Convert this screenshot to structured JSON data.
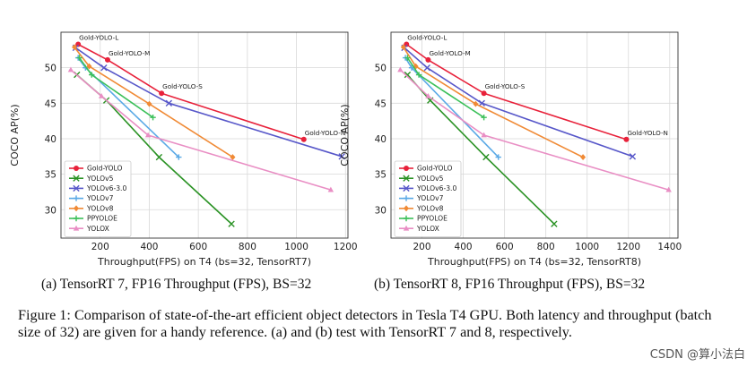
{
  "chart_data": [
    {
      "type": "line",
      "xlabel": "Throughput(FPS) on T4 (bs=32, TensorRT7)",
      "ylabel": "COCO AP(%)",
      "xlim": [
        40,
        1210
      ],
      "ylim": [
        26,
        55
      ],
      "xticks": [
        200,
        400,
        600,
        800,
        1000,
        1200
      ],
      "yticks": [
        30,
        35,
        40,
        45,
        50
      ],
      "grid": true,
      "legend": "lower-left",
      "series": [
        {
          "name": "Gold-YOLO",
          "color": "#e8213a",
          "marker": "circle",
          "x": [
            110,
            230,
            450,
            1030
          ],
          "y": [
            53.3,
            51.1,
            46.4,
            39.9
          ],
          "labels": [
            "Gold-YOLO-L",
            "Gold-YOLO-M",
            "Gold-YOLO-S",
            "Gold-YOLO-N"
          ]
        },
        {
          "name": "YOLOv5",
          "color": "#2a9224",
          "marker": "x",
          "x": [
            105,
            225,
            440,
            735
          ],
          "y": [
            49.0,
            45.4,
            37.4,
            28.0
          ]
        },
        {
          "name": "YOLOv6-3.0",
          "color": "#5757c9",
          "marker": "x",
          "x": [
            100,
            215,
            480,
            1185
          ],
          "y": [
            52.8,
            50.0,
            45.0,
            37.5
          ]
        },
        {
          "name": "YOLOv7",
          "color": "#5aa9e6",
          "marker": "plus",
          "x": [
            110,
            140,
            520
          ],
          "y": [
            51.4,
            50.0,
            37.4
          ]
        },
        {
          "name": "YOLOv8",
          "color": "#f08a35",
          "marker": "diamond",
          "x": [
            95,
            155,
            400,
            740
          ],
          "y": [
            52.9,
            50.2,
            44.9,
            37.4
          ]
        },
        {
          "name": "PPYOLOE",
          "color": "#3cc05a",
          "marker": "plus",
          "x": [
            115,
            165,
            415
          ],
          "y": [
            51.4,
            49.0,
            43.0
          ]
        },
        {
          "name": "YOLOX",
          "color": "#e98ec4",
          "marker": "triangle",
          "x": [
            80,
            205,
            395,
            1140
          ],
          "y": [
            49.7,
            46.0,
            40.5,
            32.8
          ]
        }
      ]
    },
    {
      "type": "line",
      "xlabel": "Throughput(FPS) on T4 (bs=32, TensorRT8)",
      "ylabel": "COCO AP(%)",
      "xlim": [
        50,
        1440
      ],
      "ylim": [
        26,
        55
      ],
      "xticks": [
        200,
        400,
        600,
        800,
        1000,
        1200,
        1400
      ],
      "yticks": [
        30,
        35,
        40,
        45,
        50
      ],
      "grid": true,
      "legend": "lower-left",
      "series": [
        {
          "name": "Gold-YOLO",
          "color": "#e8213a",
          "marker": "circle",
          "x": [
            125,
            230,
            500,
            1190
          ],
          "y": [
            53.3,
            51.1,
            46.4,
            39.9
          ],
          "labels": [
            "Gold-YOLO-L",
            "Gold-YOLO-M",
            "Gold-YOLO-S",
            "Gold-YOLO-N"
          ]
        },
        {
          "name": "YOLOv5",
          "color": "#2a9224",
          "marker": "x",
          "x": [
            130,
            240,
            510,
            840
          ],
          "y": [
            49.0,
            45.4,
            37.4,
            28.0
          ]
        },
        {
          "name": "YOLOv6-3.0",
          "color": "#5757c9",
          "marker": "x",
          "x": [
            115,
            225,
            490,
            1220
          ],
          "y": [
            52.8,
            50.0,
            45.0,
            37.5
          ]
        },
        {
          "name": "YOLOv7",
          "color": "#5aa9e6",
          "marker": "plus",
          "x": [
            120,
            150,
            570
          ],
          "y": [
            51.4,
            50.0,
            37.4
          ]
        },
        {
          "name": "YOLOv8",
          "color": "#f08a35",
          "marker": "diamond",
          "x": [
            110,
            170,
            460,
            980
          ],
          "y": [
            52.9,
            50.2,
            44.9,
            37.4
          ]
        },
        {
          "name": "PPYOLOE",
          "color": "#3cc05a",
          "marker": "plus",
          "x": [
            130,
            185,
            500
          ],
          "y": [
            51.4,
            49.0,
            43.0
          ]
        },
        {
          "name": "YOLOX",
          "color": "#e98ec4",
          "marker": "triangle",
          "x": [
            95,
            230,
            500,
            1395
          ],
          "y": [
            49.7,
            46.0,
            40.5,
            32.8
          ]
        }
      ]
    }
  ],
  "captions": {
    "sub_a": "(a) TensorRT 7, FP16 Throughput (FPS), BS=32",
    "sub_b": "(b) TensorRT 8, FP16 Throughput (FPS), BS=32",
    "figure": "Figure 1: Comparison of state-of-the-art efficient object detectors in Tesla T4 GPU. Both latency and throughput (batch size of 32) are given for a handy reference. (a) and (b) test with TensorRT 7 and 8, respectively."
  },
  "watermark": "CSDN @算小法白"
}
